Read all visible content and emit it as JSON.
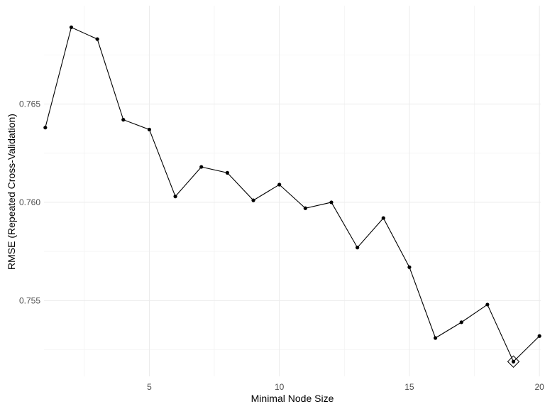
{
  "chart_data": {
    "type": "line",
    "xlabel": "Minimal Node Size",
    "ylabel": "RMSE (Repeated Cross-Validation)",
    "xlim": [
      0.95,
      20.05
    ],
    "ylim": [
      0.75115,
      0.77
    ],
    "x_ticks": [
      5,
      10,
      15,
      20
    ],
    "y_ticks": [
      0.755,
      0.76,
      0.765
    ],
    "x_tick_labels": [
      "5",
      "10",
      "15",
      "20"
    ],
    "y_tick_labels": [
      "0.755",
      "0.760",
      "0.765"
    ],
    "grid": true,
    "series": [
      {
        "x": [
          1,
          2,
          3,
          4,
          5,
          6,
          7,
          8,
          9,
          10,
          11,
          12,
          13,
          14,
          15,
          16,
          17,
          18,
          19,
          20
        ],
        "y": [
          0.7638,
          0.7689,
          0.7683,
          0.7642,
          0.7637,
          0.7603,
          0.7618,
          0.7615,
          0.7601,
          0.7609,
          0.7597,
          0.76,
          0.7577,
          0.7592,
          0.7567,
          0.7531,
          0.7539,
          0.7548,
          0.7519,
          0.7532
        ]
      }
    ],
    "highlight": {
      "x": 19,
      "y": 0.7519,
      "marker": "diamond"
    },
    "colors": {
      "line": "#000000",
      "grid": "#ebebeb",
      "tick_text": "#4d4d4d"
    }
  }
}
